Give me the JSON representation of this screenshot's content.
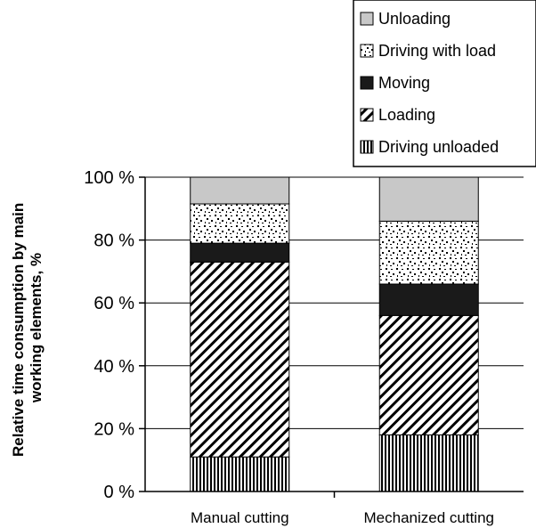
{
  "chart_data": {
    "type": "bar",
    "stacked": true,
    "categories": [
      "Manual cutting",
      "Mechanized cutting"
    ],
    "series": [
      {
        "name": "Driving unloaded",
        "values": [
          11,
          18
        ],
        "pattern": "vertical-lines"
      },
      {
        "name": "Loading",
        "values": [
          62,
          38
        ],
        "pattern": "diagonal-lines"
      },
      {
        "name": "Moving",
        "values": [
          6,
          10
        ],
        "pattern": "solid-black"
      },
      {
        "name": "Driving with load",
        "values": [
          12.5,
          20
        ],
        "pattern": "speckled"
      },
      {
        "name": "Unloading",
        "values": [
          8.5,
          14
        ],
        "pattern": "solid-gray"
      }
    ],
    "legend_order": [
      "Unloading",
      "Driving with load",
      "Moving",
      "Loading",
      "Driving unloaded"
    ],
    "title": "",
    "xlabel": "",
    "ylabel": "Relative time consumption by main working elements, %",
    "ylabel_lines": [
      "Relative time consumption by main",
      "working elements, %"
    ],
    "ylim": [
      0,
      100
    ],
    "yticks": [
      "0 %",
      "20 %",
      "40 %",
      "60 %",
      "80 %",
      "100 %"
    ],
    "grid": true,
    "legend_position": "top-right",
    "colors": {
      "gray": "#c8c8c8",
      "black": "#1a1a1a",
      "line": "#000000"
    }
  }
}
